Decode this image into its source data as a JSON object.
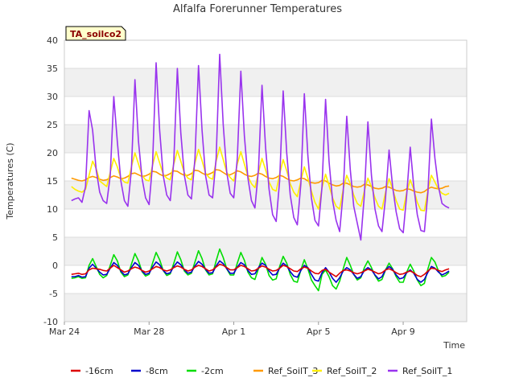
{
  "chart_data": {
    "type": "line",
    "title": "Alfalfa Forerunner Temperatures",
    "xlabel": "Time",
    "ylabel": "Temperatures (C)",
    "ylim": [
      -10,
      40
    ],
    "xlim": [
      "2024-03-24",
      "2024-04-12"
    ],
    "y_ticks": [
      -10,
      -5,
      0,
      5,
      10,
      15,
      20,
      25,
      30,
      35,
      40
    ],
    "x_ticks": [
      {
        "date": "2024-03-24",
        "label": "Mar 24"
      },
      {
        "date": "2024-03-28",
        "label": "Mar 28"
      },
      {
        "date": "2024-04-01",
        "label": "Apr 1"
      },
      {
        "date": "2024-04-05",
        "label": "Apr 5"
      },
      {
        "date": "2024-04-09",
        "label": "Apr 9"
      }
    ],
    "grid": "horizontal bands",
    "legend_position": "bottom",
    "annotation": "TA_soilco2",
    "x": [
      "2024-03-24 08:00",
      "2024-03-24 12:00",
      "2024-03-24 16:00",
      "2024-03-24 20:00",
      "2024-03-25 00:00",
      "2024-03-25 04:00",
      "2024-03-25 08:00",
      "2024-03-25 12:00",
      "2024-03-25 16:00",
      "2024-03-25 20:00",
      "2024-03-26 00:00",
      "2024-03-26 04:00",
      "2024-03-26 08:00",
      "2024-03-26 12:00",
      "2024-03-26 16:00",
      "2024-03-26 20:00",
      "2024-03-27 00:00",
      "2024-03-27 04:00",
      "2024-03-27 08:00",
      "2024-03-27 12:00",
      "2024-03-27 16:00",
      "2024-03-27 20:00",
      "2024-03-28 00:00",
      "2024-03-28 04:00",
      "2024-03-28 08:00",
      "2024-03-28 12:00",
      "2024-03-28 16:00",
      "2024-03-28 20:00",
      "2024-03-29 00:00",
      "2024-03-29 04:00",
      "2024-03-29 08:00",
      "2024-03-29 12:00",
      "2024-03-29 16:00",
      "2024-03-29 20:00",
      "2024-03-30 00:00",
      "2024-03-30 04:00",
      "2024-03-30 08:00",
      "2024-03-30 12:00",
      "2024-03-30 16:00",
      "2024-03-30 20:00",
      "2024-03-31 00:00",
      "2024-03-31 04:00",
      "2024-03-31 08:00",
      "2024-03-31 12:00",
      "2024-03-31 16:00",
      "2024-03-31 20:00",
      "2024-04-01 00:00",
      "2024-04-01 04:00",
      "2024-04-01 08:00",
      "2024-04-01 12:00",
      "2024-04-01 16:00",
      "2024-04-01 20:00",
      "2024-04-02 00:00",
      "2024-04-02 04:00",
      "2024-04-02 08:00",
      "2024-04-02 12:00",
      "2024-04-02 16:00",
      "2024-04-02 20:00",
      "2024-04-03 00:00",
      "2024-04-03 04:00",
      "2024-04-03 08:00",
      "2024-04-03 12:00",
      "2024-04-03 16:00",
      "2024-04-03 20:00",
      "2024-04-04 00:00",
      "2024-04-04 04:00",
      "2024-04-04 08:00",
      "2024-04-04 12:00",
      "2024-04-04 16:00",
      "2024-04-04 20:00",
      "2024-04-05 00:00",
      "2024-04-05 04:00",
      "2024-04-05 08:00",
      "2024-04-05 12:00",
      "2024-04-05 16:00",
      "2024-04-05 20:00",
      "2024-04-06 00:00",
      "2024-04-06 04:00",
      "2024-04-06 08:00",
      "2024-04-06 12:00",
      "2024-04-06 16:00",
      "2024-04-06 20:00",
      "2024-04-07 00:00",
      "2024-04-07 04:00",
      "2024-04-07 08:00",
      "2024-04-07 12:00",
      "2024-04-07 16:00",
      "2024-04-07 20:00",
      "2024-04-08 00:00",
      "2024-04-08 04:00",
      "2024-04-08 08:00",
      "2024-04-08 12:00",
      "2024-04-08 16:00",
      "2024-04-08 20:00",
      "2024-04-09 00:00",
      "2024-04-09 04:00",
      "2024-04-09 08:00",
      "2024-04-09 12:00",
      "2024-04-09 16:00",
      "2024-04-09 20:00",
      "2024-04-10 00:00",
      "2024-04-10 04:00",
      "2024-04-10 08:00",
      "2024-04-10 12:00",
      "2024-04-10 16:00",
      "2024-04-10 20:00",
      "2024-04-11 00:00",
      "2024-04-11 04:00"
    ],
    "series": [
      {
        "name": "-16cm",
        "color": "#dd0000",
        "values": [
          -1.6,
          -1.5,
          -1.4,
          -1.6,
          -1.5,
          -0.8,
          -0.5,
          -0.6,
          -0.7,
          -0.9,
          -1.0,
          -0.5,
          0.0,
          -0.4,
          -0.8,
          -1.2,
          -1.0,
          -0.6,
          -0.3,
          -0.5,
          -0.9,
          -1.2,
          -1.0,
          -0.6,
          -0.2,
          -0.4,
          -0.8,
          -1.0,
          -0.8,
          -0.4,
          -0.1,
          -0.3,
          -0.7,
          -1.0,
          -0.8,
          -0.3,
          0.0,
          -0.2,
          -0.6,
          -1.0,
          -0.8,
          -0.3,
          0.2,
          0.0,
          -0.4,
          -0.8,
          -0.8,
          -0.4,
          0.0,
          -0.2,
          -0.6,
          -1.0,
          -0.9,
          -0.5,
          -0.1,
          -0.3,
          -0.7,
          -1.0,
          -0.9,
          -0.5,
          0.0,
          -0.2,
          -0.6,
          -1.0,
          -1.1,
          -0.6,
          -0.3,
          -0.5,
          -1.0,
          -1.4,
          -1.5,
          -0.9,
          -0.7,
          -1.2,
          -1.6,
          -2.0,
          -1.4,
          -0.9,
          -0.8,
          -1.0,
          -1.3,
          -1.5,
          -1.3,
          -1.0,
          -0.7,
          -0.9,
          -1.2,
          -1.5,
          -1.3,
          -0.8,
          -0.6,
          -0.9,
          -1.3,
          -1.6,
          -1.5,
          -1.2,
          -1.0,
          -1.3,
          -1.8,
          -2.0,
          -1.6,
          -1.0,
          -0.5,
          -0.6,
          -0.9,
          -1.1,
          -0.8,
          -0.6
        ]
      },
      {
        "name": "-8cm",
        "color": "#0000cc",
        "values": [
          -2.0,
          -2.0,
          -1.8,
          -2.1,
          -2.0,
          -0.5,
          0.2,
          -0.5,
          -1.2,
          -1.7,
          -1.6,
          -0.5,
          0.5,
          0.0,
          -1.0,
          -1.7,
          -1.5,
          -0.4,
          0.5,
          0.0,
          -1.0,
          -1.6,
          -1.4,
          -0.3,
          0.6,
          0.1,
          -0.9,
          -1.5,
          -1.3,
          -0.2,
          0.6,
          0.1,
          -0.8,
          -1.4,
          -1.2,
          -0.1,
          0.7,
          0.2,
          -0.7,
          -1.4,
          -1.3,
          -0.1,
          0.8,
          0.3,
          -0.6,
          -1.4,
          -1.4,
          -0.3,
          0.5,
          0.1,
          -0.9,
          -1.6,
          -1.5,
          -0.4,
          0.4,
          0.0,
          -1.0,
          -1.7,
          -1.6,
          -0.5,
          0.4,
          -0.1,
          -1.1,
          -1.9,
          -2.1,
          -0.9,
          0.0,
          -0.4,
          -1.6,
          -2.6,
          -2.8,
          -1.3,
          -0.4,
          -1.2,
          -2.3,
          -3.0,
          -2.2,
          -1.0,
          -0.4,
          -0.8,
          -1.6,
          -2.3,
          -2.0,
          -0.9,
          -0.4,
          -0.8,
          -1.7,
          -2.4,
          -2.0,
          -0.8,
          -0.2,
          -0.7,
          -1.7,
          -2.4,
          -2.2,
          -1.3,
          -0.8,
          -1.4,
          -2.5,
          -3.0,
          -2.5,
          -1.2,
          -0.2,
          -0.5,
          -1.2,
          -1.7,
          -1.4,
          -1.0
        ]
      },
      {
        "name": "-2cm",
        "color": "#00dd00",
        "values": [
          -2.3,
          -2.2,
          -2.0,
          -2.3,
          -2.2,
          0.0,
          1.2,
          -0.2,
          -1.6,
          -2.2,
          -1.8,
          0.0,
          1.9,
          0.8,
          -1.2,
          -2.0,
          -1.7,
          0.2,
          2.1,
          0.8,
          -1.1,
          -1.9,
          -1.6,
          0.4,
          2.3,
          1.0,
          -0.9,
          -1.8,
          -1.5,
          0.4,
          2.4,
          1.0,
          -1.0,
          -1.7,
          -1.4,
          0.6,
          2.6,
          1.2,
          -0.8,
          -1.7,
          -1.5,
          0.8,
          2.9,
          1.4,
          -0.6,
          -1.7,
          -1.7,
          0.4,
          2.3,
          0.9,
          -1.2,
          -2.2,
          -2.5,
          -0.6,
          1.4,
          0.2,
          -1.8,
          -2.6,
          -2.4,
          -0.2,
          1.6,
          0.4,
          -1.6,
          -2.8,
          -3.0,
          -0.8,
          1.0,
          -0.6,
          -2.6,
          -3.6,
          -4.5,
          -1.6,
          -0.8,
          -2.0,
          -3.6,
          -4.2,
          -2.8,
          -0.6,
          1.4,
          0.0,
          -1.6,
          -2.6,
          -2.2,
          -0.4,
          0.8,
          -0.4,
          -1.8,
          -2.8,
          -2.5,
          -0.8,
          0.4,
          -0.6,
          -2.0,
          -3.0,
          -3.0,
          -1.2,
          0.2,
          -1.0,
          -2.6,
          -3.6,
          -3.2,
          -0.6,
          1.4,
          0.6,
          -1.0,
          -2.0,
          -1.8,
          -1.2
        ]
      },
      {
        "name": "Ref_SoilT_3",
        "color": "#ff9900",
        "values": [
          15.5,
          15.3,
          15.1,
          15.0,
          15.2,
          15.6,
          15.8,
          15.6,
          15.3,
          15.1,
          15.2,
          15.6,
          15.9,
          15.7,
          15.4,
          15.5,
          15.8,
          16.3,
          16.4,
          16.1,
          15.8,
          15.9,
          16.2,
          16.7,
          16.6,
          16.2,
          15.9,
          16.0,
          16.3,
          16.8,
          16.7,
          16.3,
          16.0,
          16.0,
          16.3,
          16.9,
          16.8,
          16.4,
          16.1,
          16.2,
          16.5,
          17.0,
          16.9,
          16.5,
          16.1,
          16.1,
          16.4,
          16.8,
          16.6,
          16.2,
          15.9,
          15.8,
          16.0,
          16.4,
          16.2,
          15.8,
          15.5,
          15.4,
          15.6,
          16.0,
          15.8,
          15.4,
          15.1,
          15.0,
          15.2,
          15.5,
          15.4,
          15.0,
          14.7,
          14.6,
          14.7,
          15.1,
          15.0,
          14.6,
          14.3,
          14.1,
          14.2,
          14.6,
          14.6,
          14.3,
          14.0,
          13.9,
          14.0,
          14.4,
          14.3,
          14.0,
          13.7,
          13.6,
          13.7,
          14.0,
          13.9,
          13.6,
          13.3,
          13.2,
          13.3,
          13.6,
          13.5,
          13.2,
          13.0,
          12.9,
          13.1,
          13.6,
          13.9,
          13.7,
          13.6,
          13.7,
          14.0,
          14.1
        ]
      },
      {
        "name": "Ref_SoilT_2",
        "color": "#ffee00",
        "values": [
          14.0,
          13.5,
          13.2,
          13.0,
          13.5,
          16.0,
          18.5,
          17.2,
          15.0,
          14.5,
          14.0,
          16.5,
          19.0,
          17.5,
          15.5,
          14.8,
          14.6,
          17.5,
          20.0,
          18.0,
          16.0,
          15.2,
          15.0,
          17.8,
          20.2,
          18.2,
          16.2,
          15.5,
          15.2,
          18.0,
          20.4,
          18.5,
          16.4,
          15.5,
          15.2,
          18.2,
          20.6,
          18.6,
          16.4,
          15.6,
          15.3,
          18.5,
          21.0,
          18.8,
          16.5,
          15.6,
          15.0,
          18.0,
          20.2,
          18.0,
          15.8,
          14.5,
          13.8,
          16.5,
          19.0,
          17.0,
          14.8,
          13.5,
          13.2,
          16.2,
          18.8,
          16.8,
          14.5,
          13.0,
          12.2,
          15.0,
          17.5,
          15.5,
          13.2,
          11.2,
          10.0,
          13.8,
          16.2,
          14.2,
          12.0,
          10.5,
          10.0,
          13.5,
          16.0,
          14.5,
          12.5,
          11.0,
          10.5,
          13.2,
          15.5,
          14.0,
          12.0,
          10.5,
          10.0,
          13.0,
          15.4,
          13.6,
          11.5,
          10.0,
          9.8,
          13.0,
          15.2,
          13.5,
          11.2,
          9.8,
          9.7,
          13.4,
          16.0,
          14.8,
          13.5,
          12.8,
          12.5,
          12.8
        ]
      },
      {
        "name": "Ref_SoilT_1",
        "color": "#9933ee",
        "values": [
          11.5,
          11.8,
          12.0,
          11.2,
          14.0,
          27.5,
          24.0,
          17.0,
          13.0,
          11.5,
          11.0,
          16.0,
          30.0,
          22.0,
          15.0,
          11.5,
          10.5,
          17.0,
          33.0,
          22.0,
          15.5,
          12.0,
          10.8,
          18.0,
          36.0,
          24.0,
          16.0,
          12.5,
          11.5,
          18.5,
          35.0,
          23.5,
          16.0,
          12.5,
          11.8,
          19.0,
          35.5,
          24.0,
          16.0,
          12.5,
          12.0,
          19.0,
          37.5,
          25.0,
          16.5,
          12.8,
          12.0,
          19.0,
          34.5,
          23.0,
          15.5,
          11.5,
          10.2,
          17.0,
          32.0,
          21.0,
          13.5,
          9.0,
          7.8,
          15.0,
          31.0,
          20.0,
          12.5,
          8.5,
          7.2,
          14.5,
          30.5,
          19.5,
          12.0,
          8.0,
          7.0,
          14.0,
          29.5,
          18.5,
          11.5,
          8.0,
          6.0,
          13.0,
          26.5,
          17.0,
          10.5,
          7.5,
          4.5,
          12.5,
          25.5,
          16.0,
          10.0,
          7.0,
          6.0,
          12.0,
          20.5,
          14.0,
          9.5,
          6.5,
          5.8,
          12.5,
          21.0,
          14.0,
          9.0,
          6.2,
          6.0,
          13.0,
          26.0,
          19.0,
          14.0,
          11.0,
          10.5,
          10.2
        ]
      }
    ]
  },
  "legend": [
    {
      "label": "-16cm",
      "color": "#dd0000"
    },
    {
      "label": "-8cm",
      "color": "#0000cc"
    },
    {
      "label": "-2cm",
      "color": "#00dd00"
    },
    {
      "label": "Ref_SoilT_3",
      "color": "#ff9900"
    },
    {
      "label": "Ref_SoilT_2",
      "color": "#ffee00"
    },
    {
      "label": "Ref_SoilT_1",
      "color": "#9933ee"
    }
  ]
}
